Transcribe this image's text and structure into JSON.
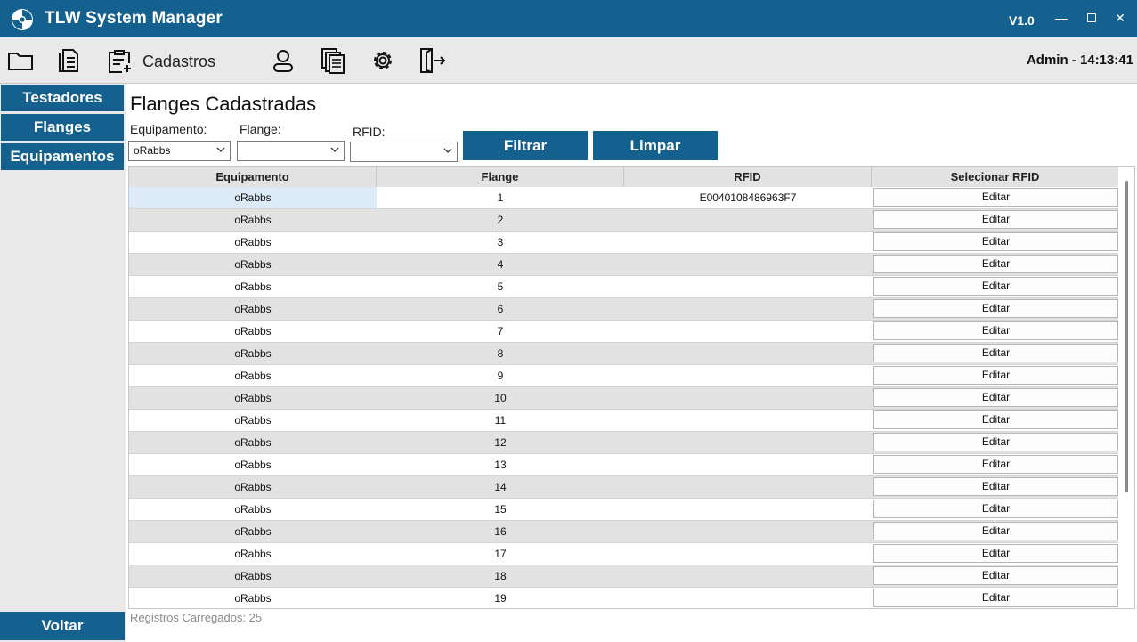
{
  "app": {
    "title": "TLW System Manager",
    "version": "V1.0"
  },
  "toolbar": {
    "section_label": "Cadastros",
    "user_time": "Admin - 14:13:41"
  },
  "sidebar": {
    "items": [
      "Testadores",
      "Flanges",
      "Equipamentos"
    ],
    "back_label": "Voltar"
  },
  "main": {
    "title": "Flanges Cadastradas",
    "filters": {
      "equipamento_label": "Equipamento:",
      "equipamento_value": "oRabbs",
      "flange_label": "Flange:",
      "flange_value": "",
      "rfid_label": "RFID:",
      "rfid_value": ""
    },
    "buttons": {
      "filter": "Filtrar",
      "clear": "Limpar"
    },
    "table": {
      "headers": [
        "Equipamento",
        "Flange",
        "RFID",
        "Selecionar RFID"
      ],
      "edit_label": "Editar",
      "rows": [
        {
          "equip": "oRabbs",
          "flange": "1",
          "rfid": "E0040108486963F7"
        },
        {
          "equip": "oRabbs",
          "flange": "2",
          "rfid": ""
        },
        {
          "equip": "oRabbs",
          "flange": "3",
          "rfid": ""
        },
        {
          "equip": "oRabbs",
          "flange": "4",
          "rfid": ""
        },
        {
          "equip": "oRabbs",
          "flange": "5",
          "rfid": ""
        },
        {
          "equip": "oRabbs",
          "flange": "6",
          "rfid": ""
        },
        {
          "equip": "oRabbs",
          "flange": "7",
          "rfid": ""
        },
        {
          "equip": "oRabbs",
          "flange": "8",
          "rfid": ""
        },
        {
          "equip": "oRabbs",
          "flange": "9",
          "rfid": ""
        },
        {
          "equip": "oRabbs",
          "flange": "10",
          "rfid": ""
        },
        {
          "equip": "oRabbs",
          "flange": "11",
          "rfid": ""
        },
        {
          "equip": "oRabbs",
          "flange": "12",
          "rfid": ""
        },
        {
          "equip": "oRabbs",
          "flange": "13",
          "rfid": ""
        },
        {
          "equip": "oRabbs",
          "flange": "14",
          "rfid": ""
        },
        {
          "equip": "oRabbs",
          "flange": "15",
          "rfid": ""
        },
        {
          "equip": "oRabbs",
          "flange": "16",
          "rfid": ""
        },
        {
          "equip": "oRabbs",
          "flange": "17",
          "rfid": ""
        },
        {
          "equip": "oRabbs",
          "flange": "18",
          "rfid": ""
        },
        {
          "equip": "oRabbs",
          "flange": "19",
          "rfid": ""
        }
      ]
    },
    "footer": "Registros Carregados: 25"
  },
  "colors": {
    "primary": "#14608f",
    "row_alt": "#e2e2e2",
    "row_selected": "#dcebf7"
  },
  "icons": [
    "app-logo-icon",
    "folder-icon",
    "document-icon",
    "clipboard-add-icon",
    "user-icon",
    "documents-stack-icon",
    "gear-icon",
    "exit-icon"
  ]
}
